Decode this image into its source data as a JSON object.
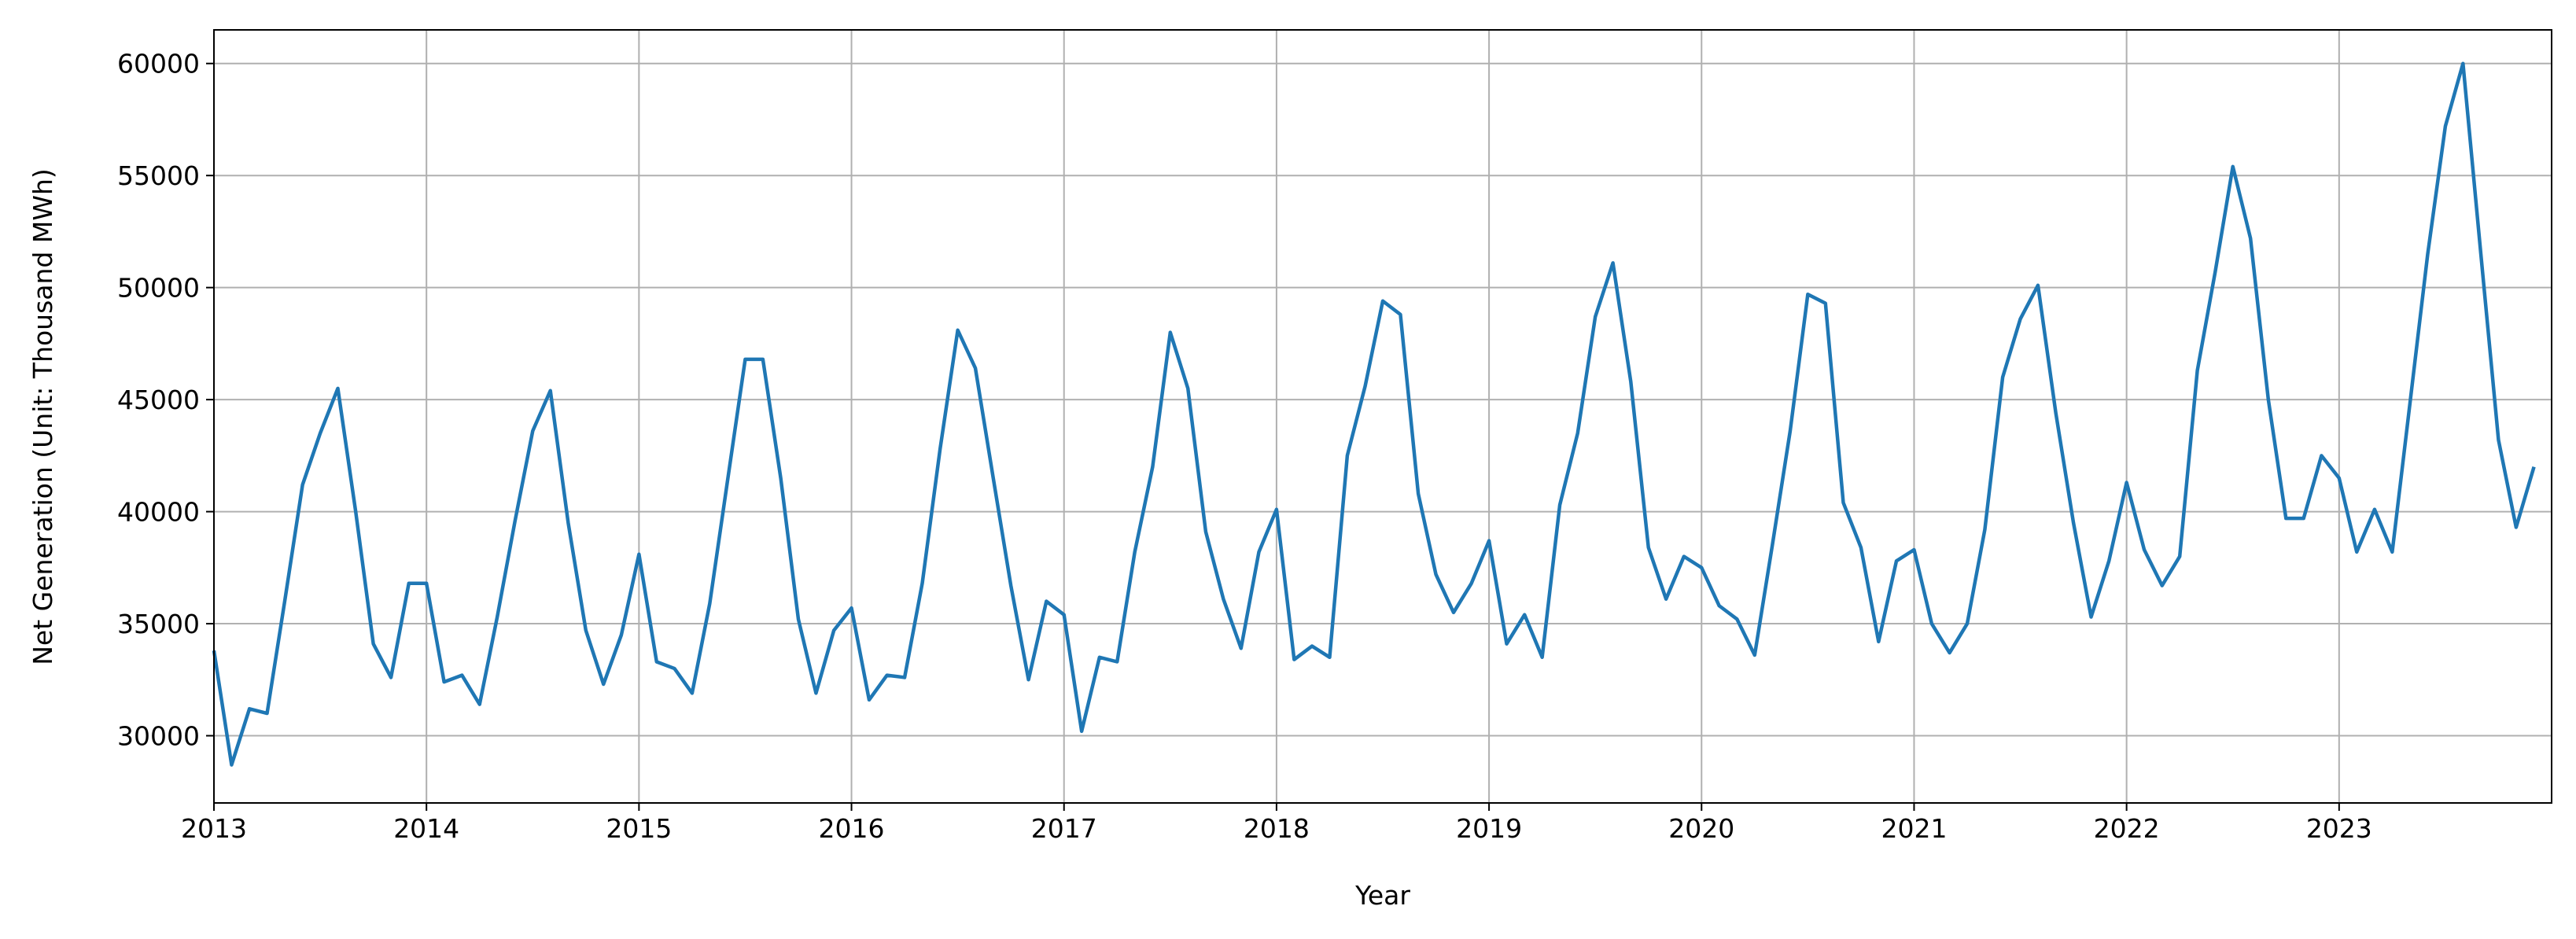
{
  "chart_data": {
    "type": "line",
    "x_label": "Year",
    "y_label": "Net Generation (Unit: Thousand MWh)",
    "x": [
      2013.0,
      2013.083,
      2013.167,
      2013.25,
      2013.333,
      2013.417,
      2013.5,
      2013.583,
      2013.667,
      2013.75,
      2013.833,
      2013.917,
      2014.0,
      2014.083,
      2014.167,
      2014.25,
      2014.333,
      2014.417,
      2014.5,
      2014.583,
      2014.667,
      2014.75,
      2014.833,
      2014.917,
      2015.0,
      2015.083,
      2015.167,
      2015.25,
      2015.333,
      2015.417,
      2015.5,
      2015.583,
      2015.667,
      2015.75,
      2015.833,
      2015.917,
      2016.0,
      2016.083,
      2016.167,
      2016.25,
      2016.333,
      2016.417,
      2016.5,
      2016.583,
      2016.667,
      2016.75,
      2016.833,
      2016.917,
      2017.0,
      2017.083,
      2017.167,
      2017.25,
      2017.333,
      2017.417,
      2017.5,
      2017.583,
      2017.667,
      2017.75,
      2017.833,
      2017.917,
      2018.0,
      2018.083,
      2018.167,
      2018.25,
      2018.333,
      2018.417,
      2018.5,
      2018.583,
      2018.667,
      2018.75,
      2018.833,
      2018.917,
      2019.0,
      2019.083,
      2019.167,
      2019.25,
      2019.333,
      2019.417,
      2019.5,
      2019.583,
      2019.667,
      2019.75,
      2019.833,
      2019.917,
      2020.0,
      2020.083,
      2020.167,
      2020.25,
      2020.333,
      2020.417,
      2020.5,
      2020.583,
      2020.667,
      2020.75,
      2020.833,
      2020.917,
      2021.0,
      2021.083,
      2021.167,
      2021.25,
      2021.333,
      2021.417,
      2021.5,
      2021.583,
      2021.667,
      2021.75,
      2021.833,
      2021.917,
      2022.0,
      2022.083,
      2022.167,
      2022.25,
      2022.333,
      2022.417,
      2022.5,
      2022.583,
      2022.667,
      2022.75,
      2022.833,
      2022.917,
      2023.0,
      2023.083,
      2023.167,
      2023.25,
      2023.333,
      2023.417,
      2023.5,
      2023.583,
      2023.667,
      2023.75,
      2023.833,
      2023.917
    ],
    "series": [
      {
        "color": "#1f77b4",
        "values": [
          33800,
          28700,
          31200,
          31000,
          36000,
          41200,
          43500,
          45500,
          40000,
          34100,
          32600,
          36800,
          36800,
          32400,
          32700,
          31400,
          35300,
          39600,
          43600,
          45400,
          39500,
          34700,
          32300,
          34500,
          38100,
          33300,
          33000,
          31900,
          35900,
          41400,
          46800,
          46800,
          41500,
          35200,
          31900,
          34700,
          35700,
          31600,
          32700,
          32600,
          36800,
          42800,
          48100,
          46400,
          41500,
          36700,
          32500,
          36000,
          35400,
          30200,
          33500,
          33300,
          38200,
          42000,
          48000,
          45500,
          39100,
          36100,
          33900,
          38200,
          40100,
          33400,
          34000,
          33500,
          42500,
          45600,
          49400,
          48800,
          40800,
          37200,
          35500,
          36800,
          38700,
          34100,
          35400,
          33500,
          40300,
          43500,
          48700,
          51100,
          45800,
          38400,
          36100,
          38000,
          37500,
          35800,
          35200,
          33600,
          38500,
          43600,
          49700,
          49300,
          40400,
          38400,
          34200,
          37800,
          38300,
          35000,
          33700,
          35000,
          39200,
          46000,
          48600,
          50100,
          44400,
          39500,
          35300,
          37800,
          41300,
          38300,
          36700,
          38000,
          46300,
          50700,
          55400,
          52200,
          45000,
          39700,
          39700,
          42500,
          41500,
          38200,
          40100,
          38200,
          44800,
          51500,
          57200,
          60000,
          51500,
          43200,
          39300,
          42000
        ]
      }
    ],
    "xlim": [
      2013,
      2024
    ],
    "ylim": [
      27000,
      61500
    ],
    "xticks": [
      2013,
      2014,
      2015,
      2016,
      2017,
      2018,
      2019,
      2020,
      2021,
      2022,
      2023
    ],
    "yticks": [
      30000,
      35000,
      40000,
      45000,
      50000,
      55000,
      60000
    ],
    "grid": true
  }
}
